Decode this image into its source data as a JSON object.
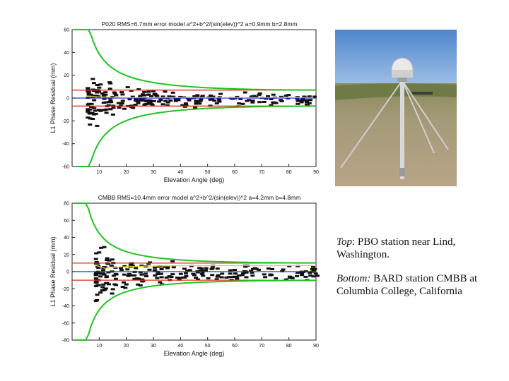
{
  "chart_data": [
    {
      "type": "scatter",
      "title": "P020 RMS=6.7mm error model a^2+b^2/(sin(elev))^2 a=0.9mm b=2.8mm",
      "xlabel": "Elevation Angle (deg)",
      "ylabel": "L1 Phase Residual (mm)",
      "xlim": [
        0,
        90
      ],
      "ylim": [
        -60,
        60
      ],
      "xticks": [
        10,
        20,
        30,
        40,
        50,
        60,
        70,
        80,
        90
      ],
      "yticks": [
        -60,
        -40,
        -20,
        0,
        20,
        40,
        60
      ],
      "scatter_start_deg": 5,
      "scatter_half_width": [
        [
          5,
          30
        ],
        [
          10,
          24
        ],
        [
          15,
          18
        ],
        [
          20,
          14
        ],
        [
          30,
          11
        ],
        [
          40,
          9
        ],
        [
          60,
          8
        ],
        [
          90,
          7
        ]
      ],
      "reference_lines": [
        {
          "color": "#e0301e",
          "y": 7
        },
        {
          "color": "#e0301e",
          "y": -7
        },
        {
          "color": "#2230d8",
          "y": 0
        }
      ],
      "envelope": {
        "color": "#22c322",
        "a": 0.9,
        "b": 2.8,
        "scale": 2.4
      },
      "mean_curve_color": "#e0d02a",
      "mean_curve_y": [
        [
          5,
          2
        ],
        [
          10,
          1
        ],
        [
          20,
          0.5
        ],
        [
          40,
          0.5
        ],
        [
          90,
          0.5
        ]
      ]
    },
    {
      "type": "scatter",
      "title": "CMBB RMS=10.4mm error model a^2+b^2/(sin(elev))^2 a=4.2mm b=4.8mm",
      "xlabel": "Elevation Angle (deg)",
      "ylabel": "L1 Phase Residual (mm)",
      "xlim": [
        0,
        90
      ],
      "ylim": [
        -80,
        80
      ],
      "xticks": [
        10,
        20,
        30,
        40,
        50,
        60,
        70,
        80,
        90
      ],
      "yticks": [
        -80,
        -60,
        -40,
        -20,
        0,
        20,
        40,
        60,
        80
      ],
      "scatter_start_deg": 8,
      "scatter_half_width": [
        [
          8,
          40
        ],
        [
          15,
          36
        ],
        [
          20,
          28
        ],
        [
          30,
          20
        ],
        [
          40,
          16
        ],
        [
          60,
          14
        ],
        [
          90,
          12
        ]
      ],
      "reference_lines": [
        {
          "color": "#e0301e",
          "y": 10
        },
        {
          "color": "#e0301e",
          "y": -10
        },
        {
          "color": "#2230d8",
          "y": 0
        }
      ],
      "envelope": {
        "color": "#22c322",
        "a": 4.2,
        "b": 4.8,
        "scale": 1.6
      },
      "mean_curve_color": "#e0d02a",
      "mean_curve_y": [
        [
          8,
          8
        ],
        [
          12,
          4
        ],
        [
          20,
          6
        ],
        [
          40,
          7
        ],
        [
          90,
          7
        ]
      ]
    }
  ],
  "caption": {
    "top_label": "Top",
    "top_text": ": PBO station near Lind, Washington.",
    "bottom_label": "Bottom:",
    "bottom_text": " BARD station CMBB at Columbia College, California"
  }
}
